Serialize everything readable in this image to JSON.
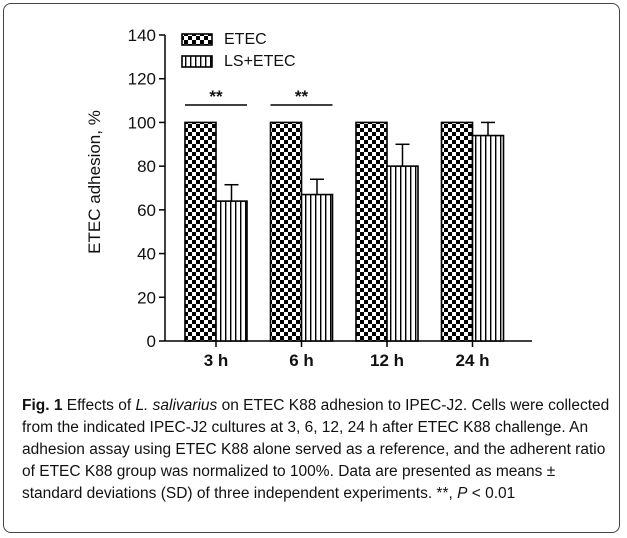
{
  "chart_data": {
    "type": "bar",
    "categories": [
      "3 h",
      "6 h",
      "12 h",
      "24 h"
    ],
    "ylabel": "ETEC adhesion, %",
    "ylim": [
      0,
      140
    ],
    "yticks": [
      0,
      20,
      40,
      60,
      80,
      100,
      120,
      140
    ],
    "legend_position": "top-left",
    "series": [
      {
        "name": "ETEC",
        "values": [
          100,
          100,
          100,
          100
        ],
        "errors": [
          0,
          0,
          0,
          0
        ],
        "pattern": "checkerboard"
      },
      {
        "name": "LS+ETEC",
        "values": [
          64,
          67,
          80,
          94
        ],
        "errors": [
          7.5,
          7,
          10,
          6
        ],
        "pattern": "vertical-stripes"
      }
    ],
    "annotations": [
      {
        "category": "3 h",
        "text": "**"
      },
      {
        "category": "6 h",
        "text": "**"
      }
    ]
  },
  "caption": {
    "label": "Fig. 1",
    "part1": " Effects of ",
    "species": "L. salivarius",
    "part2": " on ETEC K88 adhesion to IPEC-J2. Cells were collected from the indicated IPEC-J2 cultures at 3, 6, 12, 24 h after ETEC K88 challenge. An adhesion assay using ETEC K88 alone served as a reference, and the adherent ratio of ETEC K88 group was normalized to 100%. Data are presented as means ± standard deviations (SD) of three independent experiments. **, ",
    "p_symbol": "P",
    "part3": " < 0.01"
  }
}
